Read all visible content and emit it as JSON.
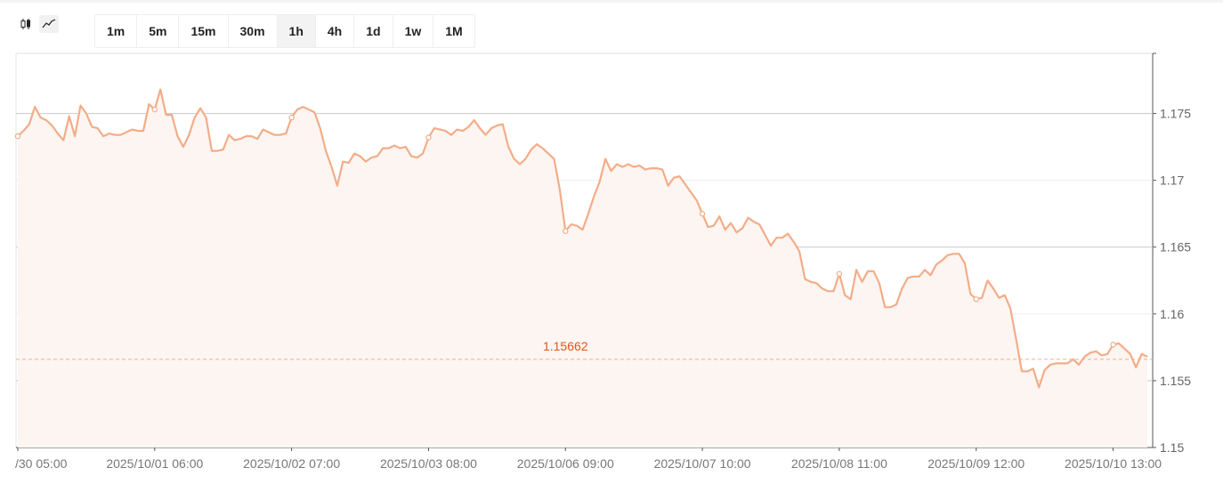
{
  "toolbar": {
    "chart_type_icons": [
      "candlestick-icon",
      "line-chart-icon"
    ],
    "intervals": [
      "1m",
      "5m",
      "15m",
      "30m",
      "1h",
      "4h",
      "1d",
      "1w",
      "1M"
    ],
    "active_interval": "1h"
  },
  "colors": {
    "line": "#f2ad88",
    "fill": "#fdf5f1",
    "ref_line": "#f2ad88",
    "ref_label": "#e0561c"
  },
  "chart_data": {
    "type": "area",
    "title": "",
    "xlabel": "",
    "ylabel": "",
    "ylim": [
      1.15,
      1.1795
    ],
    "yticks": [
      1.15,
      1.155,
      1.16,
      1.165,
      1.17,
      1.175
    ],
    "ytick_labels": [
      "1.15",
      "1.155",
      "1.16",
      "1.165",
      "1.17",
      "1.175"
    ],
    "xtick_labels": [
      "/30 05:00",
      "2025/10/01 06:00",
      "2025/10/02 07:00",
      "2025/10/03 08:00",
      "2025/10/06 09:00",
      "2025/10/07 10:00",
      "2025/10/08 11:00",
      "2025/10/09 12:00",
      "2025/10/10 13:00"
    ],
    "xtick_index": [
      0,
      24,
      48,
      72,
      96,
      120,
      144,
      168,
      192
    ],
    "reference_line": {
      "value": 1.1566,
      "label": "1.15662",
      "position": 96
    },
    "markers": [
      0,
      24,
      48,
      72,
      96,
      120,
      144,
      168,
      192
    ],
    "series": [
      {
        "values": [
          1.1733,
          1.1737,
          1.1742,
          1.1755,
          1.1747,
          1.1745,
          1.1741,
          1.1735,
          1.173,
          1.1748,
          1.1733,
          1.1756,
          1.175,
          1.174,
          1.1739,
          1.1733,
          1.1735,
          1.1734,
          1.1734,
          1.1736,
          1.1738,
          1.1737,
          1.1737,
          1.1757,
          1.1753,
          1.1768,
          1.1749,
          1.1749,
          1.1733,
          1.1725,
          1.1734,
          1.1747,
          1.1754,
          1.1747,
          1.1722,
          1.1722,
          1.1723,
          1.1734,
          1.173,
          1.1731,
          1.1733,
          1.1733,
          1.1731,
          1.1738,
          1.1736,
          1.1734,
          1.1734,
          1.1735,
          1.1747,
          1.1753,
          1.1755,
          1.1753,
          1.1751,
          1.1739,
          1.1722,
          1.171,
          1.1696,
          1.1714,
          1.1713,
          1.172,
          1.1718,
          1.1714,
          1.1717,
          1.1718,
          1.1724,
          1.1724,
          1.1726,
          1.1724,
          1.1725,
          1.1718,
          1.1717,
          1.172,
          1.1732,
          1.1739,
          1.1738,
          1.1737,
          1.1734,
          1.1738,
          1.1737,
          1.174,
          1.1745,
          1.1739,
          1.1734,
          1.1739,
          1.1741,
          1.1742,
          1.1725,
          1.1716,
          1.1712,
          1.1716,
          1.1723,
          1.1727,
          1.1724,
          1.172,
          1.1716,
          1.1693,
          1.1662,
          1.1667,
          1.1666,
          1.1663,
          1.1675,
          1.1688,
          1.1699,
          1.1716,
          1.1707,
          1.1712,
          1.171,
          1.1712,
          1.171,
          1.1711,
          1.1708,
          1.1709,
          1.1709,
          1.1708,
          1.1696,
          1.1702,
          1.1703,
          1.1697,
          1.1691,
          1.1685,
          1.1675,
          1.1665,
          1.1666,
          1.1673,
          1.1663,
          1.1668,
          1.1661,
          1.1664,
          1.1672,
          1.1669,
          1.1667,
          1.1659,
          1.1651,
          1.1657,
          1.1657,
          1.166,
          1.1654,
          1.1647,
          1.1626,
          1.1624,
          1.1623,
          1.1619,
          1.1617,
          1.1617,
          1.163,
          1.1614,
          1.1611,
          1.1633,
          1.1624,
          1.1632,
          1.1632,
          1.1623,
          1.1605,
          1.1605,
          1.1607,
          1.1619,
          1.1627,
          1.1628,
          1.1628,
          1.1633,
          1.1629,
          1.1637,
          1.164,
          1.1644,
          1.1645,
          1.1645,
          1.1638,
          1.1615,
          1.1611,
          1.1612,
          1.1625,
          1.1619,
          1.1612,
          1.1614,
          1.1604,
          1.1581,
          1.1557,
          1.1557,
          1.1559,
          1.1545,
          1.1558,
          1.1562,
          1.1563,
          1.1563,
          1.1563,
          1.1566,
          1.1562,
          1.1568,
          1.1571,
          1.1572,
          1.1569,
          1.157,
          1.1577,
          1.1578,
          1.1574,
          1.157,
          1.156,
          1.157,
          1.1568
        ]
      }
    ]
  }
}
